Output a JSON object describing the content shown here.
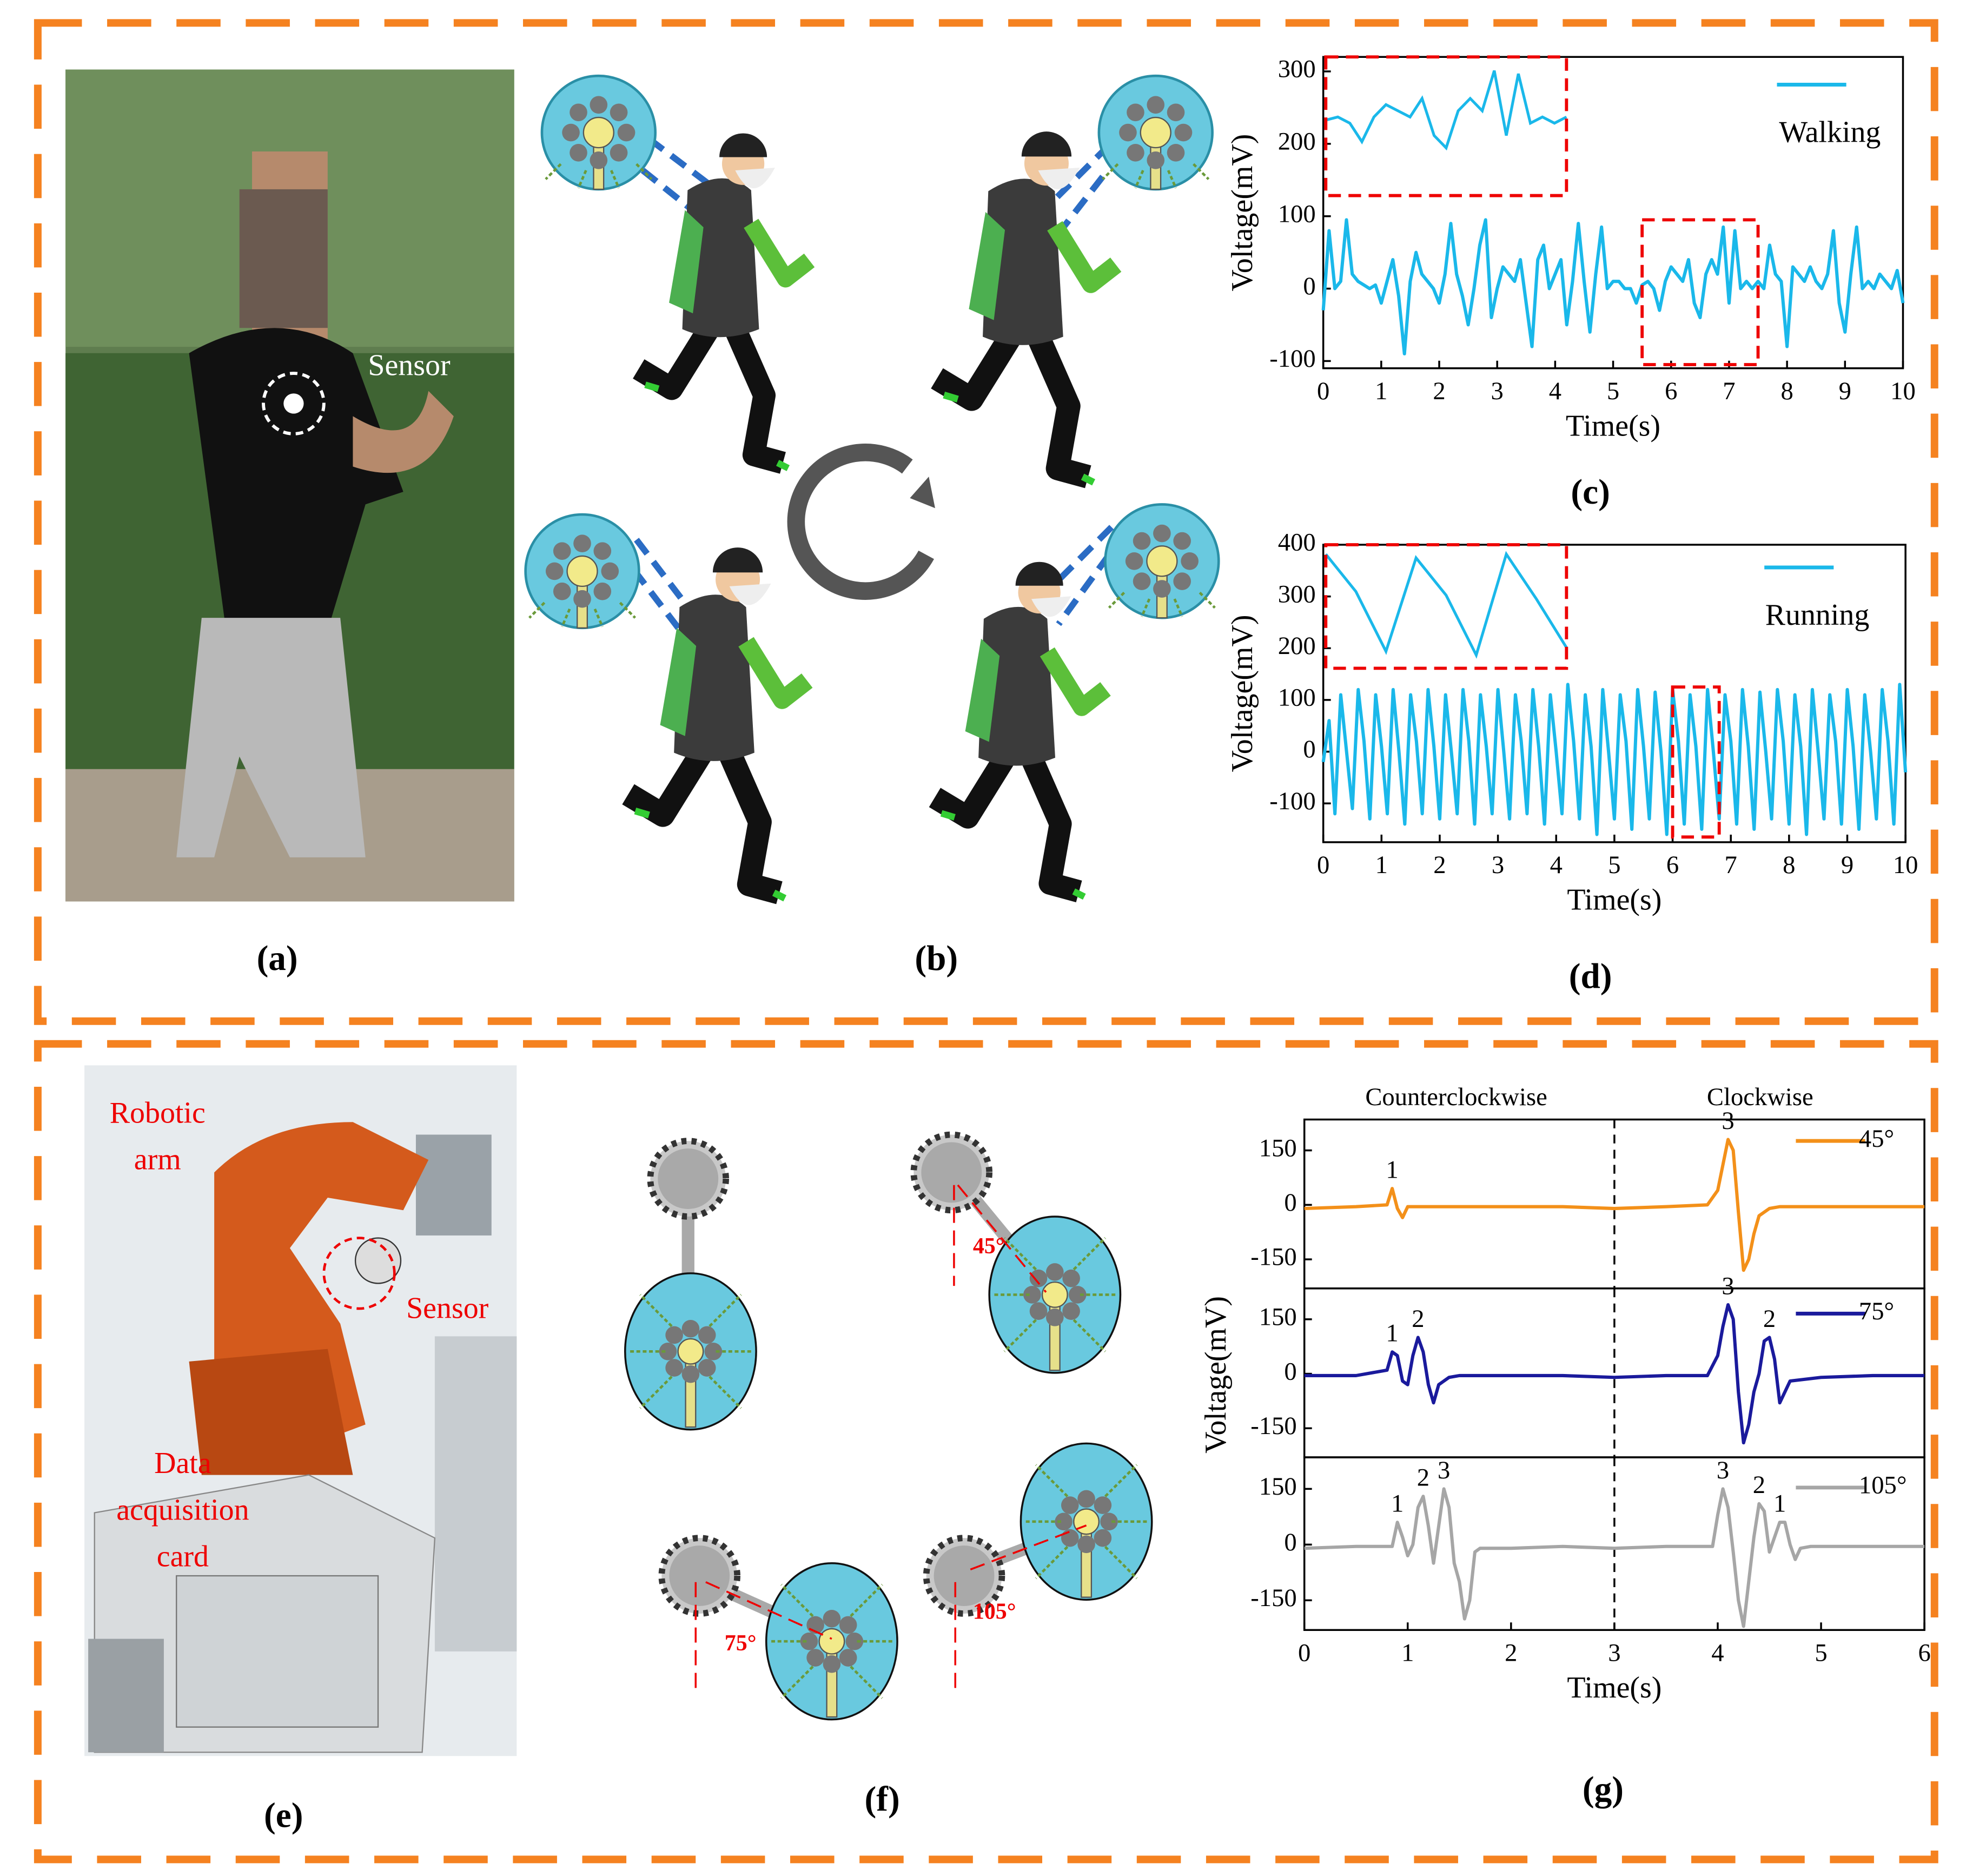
{
  "panel_labels": [
    "(a)",
    "(b)",
    "(c)",
    "(d)",
    "(e)",
    "(f)",
    "(g)"
  ],
  "photo_a": {
    "sensor_label": "Sensor"
  },
  "photo_e": {
    "robotic_arm": [
      "Robotic",
      "arm"
    ],
    "sensor_label": "Sensor",
    "daq_card": [
      "Data",
      "acquisition",
      "card"
    ]
  },
  "diagram_f": {
    "angles": [
      "45°",
      "75°",
      "105°"
    ]
  },
  "chart_data": [
    {
      "type": "line",
      "xlabel": "Time(s)",
      "ylabel": "Voltage(mV)",
      "x": [
        0,
        0.1,
        0.2,
        0.3,
        0.4,
        0.5,
        0.6,
        0.7,
        0.8,
        0.9,
        1,
        1.1,
        1.2,
        1.3,
        1.4,
        1.5,
        1.6,
        1.7,
        1.8,
        1.9,
        2,
        2.1,
        2.2,
        2.3,
        2.4,
        2.5,
        2.6,
        2.7,
        2.8,
        2.9,
        3,
        3.1,
        3.2,
        3.3,
        3.4,
        3.5,
        3.6,
        3.7,
        3.8,
        3.9,
        4,
        4.1,
        4.2,
        4.3,
        4.4,
        4.5,
        4.6,
        4.7,
        4.8,
        4.9,
        5,
        5.1,
        5.2,
        5.3,
        5.4,
        5.5,
        5.6,
        5.7,
        5.8,
        5.9,
        6,
        6.1,
        6.2,
        6.3,
        6.4,
        6.5,
        6.6,
        6.7,
        6.8,
        6.9,
        7,
        7.1,
        7.2,
        7.3,
        7.4,
        7.5,
        7.6,
        7.7,
        7.8,
        7.9,
        8,
        8.1,
        8.2,
        8.3,
        8.4,
        8.5,
        8.6,
        8.7,
        8.8,
        8.9,
        9,
        9.1,
        9.2,
        9.3,
        9.4,
        9.5,
        9.6,
        9.7,
        9.8,
        9.9,
        10
      ],
      "series": [
        {
          "name": "Walking",
          "color": "#1ab8ea",
          "values": [
            -30,
            80,
            0,
            10,
            95,
            20,
            10,
            5,
            0,
            5,
            -20,
            10,
            40,
            -10,
            -90,
            10,
            50,
            20,
            10,
            0,
            -20,
            20,
            90,
            20,
            -10,
            -50,
            0,
            60,
            95,
            -40,
            0,
            30,
            20,
            10,
            40,
            -20,
            -80,
            40,
            60,
            0,
            20,
            40,
            -50,
            10,
            90,
            10,
            -60,
            20,
            85,
            0,
            10,
            10,
            0,
            0,
            -20,
            5,
            10,
            0,
            -30,
            10,
            30,
            20,
            10,
            40,
            -20,
            -40,
            20,
            40,
            20,
            85,
            -20,
            80,
            0,
            10,
            0,
            10,
            0,
            60,
            20,
            10,
            -80,
            30,
            20,
            10,
            30,
            10,
            0,
            20,
            80,
            -20,
            -60,
            20,
            85,
            0,
            10,
            0,
            20,
            10,
            0,
            25,
            -20
          ]
        }
      ],
      "xlim": [
        0,
        10
      ],
      "ylim": [
        -110,
        320
      ],
      "xticks": [
        0,
        1,
        2,
        3,
        4,
        5,
        6,
        7,
        8,
        9,
        10
      ],
      "yticks": [
        -100,
        0,
        100,
        200,
        300
      ],
      "inset": {
        "xlim": [
          5.5,
          7.5
        ],
        "ylim": [
          -105,
          95
        ]
      }
    },
    {
      "type": "line",
      "xlabel": "Time(s)",
      "ylabel": "Voltage(mV)",
      "x": [
        0,
        0.1,
        0.2,
        0.3,
        0.4,
        0.5,
        0.6,
        0.7,
        0.8,
        0.9,
        1,
        1.1,
        1.2,
        1.3,
        1.4,
        1.5,
        1.6,
        1.7,
        1.8,
        1.9,
        2,
        2.1,
        2.2,
        2.3,
        2.4,
        2.5,
        2.6,
        2.7,
        2.8,
        2.9,
        3,
        3.1,
        3.2,
        3.3,
        3.4,
        3.5,
        3.6,
        3.7,
        3.8,
        3.9,
        4,
        4.1,
        4.2,
        4.3,
        4.4,
        4.5,
        4.6,
        4.7,
        4.8,
        4.9,
        5,
        5.1,
        5.2,
        5.3,
        5.4,
        5.5,
        5.6,
        5.7,
        5.8,
        5.9,
        6,
        6.1,
        6.2,
        6.3,
        6.4,
        6.5,
        6.6,
        6.7,
        6.8,
        6.9,
        7,
        7.1,
        7.2,
        7.3,
        7.4,
        7.5,
        7.6,
        7.7,
        7.8,
        7.9,
        8,
        8.1,
        8.2,
        8.3,
        8.4,
        8.5,
        8.6,
        8.7,
        8.8,
        8.9,
        9,
        9.1,
        9.2,
        9.3,
        9.4,
        9.5,
        9.6,
        9.7,
        9.8,
        9.9,
        10
      ],
      "series": [
        {
          "name": "Running",
          "color": "#1ab8ea",
          "values": [
            -20,
            60,
            -120,
            110,
            0,
            -110,
            120,
            20,
            -130,
            110,
            10,
            -120,
            120,
            0,
            -140,
            110,
            20,
            -120,
            120,
            10,
            -130,
            110,
            0,
            -120,
            120,
            20,
            -140,
            110,
            10,
            -120,
            120,
            0,
            -130,
            110,
            20,
            -120,
            120,
            10,
            -140,
            110,
            0,
            -120,
            130,
            20,
            -130,
            110,
            10,
            -160,
            120,
            0,
            -130,
            110,
            20,
            -150,
            120,
            10,
            -130,
            115,
            0,
            -160,
            120,
            20,
            -140,
            110,
            10,
            -150,
            120,
            0,
            -130,
            110,
            20,
            -140,
            120,
            10,
            -150,
            115,
            0,
            -130,
            120,
            20,
            -140,
            110,
            10,
            -160,
            120,
            0,
            -130,
            110,
            20,
            -140,
            120,
            10,
            -150,
            110,
            0,
            -130,
            120,
            20,
            -140,
            130,
            -40
          ]
        }
      ],
      "xlim": [
        0,
        10
      ],
      "ylim": [
        -175,
        400
      ],
      "xticks": [
        0,
        1,
        2,
        3,
        4,
        5,
        6,
        7,
        8,
        9,
        10
      ],
      "yticks": [
        -100,
        0,
        100,
        200,
        300,
        400
      ],
      "inset": {
        "xlim": [
          6.0,
          6.8
        ],
        "ylim": [
          -165,
          125
        ]
      }
    },
    {
      "type": "line",
      "annotations": [
        "Counterclockwise",
        "Clockwise"
      ],
      "divider_x": 3,
      "x": [
        0,
        0.5,
        0.8,
        0.85,
        0.9,
        0.95,
        1.0,
        1.5,
        2,
        2.5,
        3,
        3.5,
        3.9,
        4.0,
        4.1,
        4.15,
        4.2,
        4.25,
        4.3,
        4.35,
        4.4,
        4.5,
        4.6,
        5,
        5.5,
        6
      ],
      "series": [
        {
          "name": "45°",
          "color": "#f39019",
          "values": [
            -10,
            -5,
            0,
            45,
            -10,
            -35,
            -5,
            -5,
            -5,
            -5,
            -10,
            -5,
            0,
            40,
            180,
            150,
            -20,
            -180,
            -150,
            -80,
            -30,
            -10,
            -5,
            -5,
            -5,
            -5
          ],
          "point_labels": [
            null,
            null,
            null,
            "1",
            null,
            null,
            null,
            null,
            null,
            null,
            null,
            null,
            null,
            null,
            "3",
            null,
            null,
            null,
            null,
            null,
            null,
            null,
            null,
            null,
            null,
            null
          ]
        }
      ],
      "xlim": [
        0,
        6
      ],
      "ylim": [
        -230,
        235
      ],
      "yticks": [
        -150,
        0,
        150
      ]
    },
    {
      "type": "line",
      "ylabel": "Voltage(mV)",
      "divider_x": 3,
      "x": [
        0,
        0.5,
        0.8,
        0.85,
        0.9,
        0.95,
        1.0,
        1.05,
        1.1,
        1.15,
        1.2,
        1.25,
        1.3,
        1.4,
        1.5,
        2,
        2.5,
        3,
        3.5,
        3.9,
        4.0,
        4.05,
        4.1,
        4.15,
        4.2,
        4.25,
        4.3,
        4.35,
        4.4,
        4.45,
        4.5,
        4.55,
        4.6,
        4.7,
        5,
        5.5,
        6
      ],
      "series": [
        {
          "name": "75°",
          "color": "#1a1a9c",
          "values": [
            -5,
            -5,
            10,
            60,
            50,
            -20,
            -30,
            50,
            100,
            60,
            -30,
            -80,
            -30,
            -10,
            -5,
            -5,
            -5,
            -10,
            -5,
            -5,
            50,
            130,
            190,
            150,
            -50,
            -190,
            -140,
            -50,
            0,
            90,
            100,
            40,
            -80,
            -20,
            -10,
            -5,
            -5
          ],
          "point_labels": [
            null,
            null,
            null,
            "1",
            null,
            null,
            null,
            null,
            "2",
            null,
            null,
            null,
            null,
            null,
            null,
            null,
            null,
            null,
            null,
            null,
            null,
            null,
            "3",
            null,
            null,
            null,
            null,
            null,
            null,
            null,
            "2",
            null,
            null,
            null,
            null,
            null,
            null
          ]
        }
      ],
      "xlim": [
        0,
        6
      ],
      "ylim": [
        -230,
        235
      ],
      "yticks": [
        -150,
        0,
        150
      ]
    },
    {
      "type": "line",
      "xlabel": "Time(s)",
      "divider_x": 3,
      "x": [
        0,
        0.5,
        0.85,
        0.9,
        0.95,
        1.0,
        1.05,
        1.1,
        1.15,
        1.2,
        1.25,
        1.3,
        1.35,
        1.4,
        1.45,
        1.5,
        1.55,
        1.6,
        1.65,
        1.7,
        2,
        2.5,
        3,
        3.5,
        3.95,
        4.0,
        4.05,
        4.1,
        4.15,
        4.2,
        4.25,
        4.3,
        4.35,
        4.4,
        4.45,
        4.5,
        4.55,
        4.6,
        4.65,
        4.7,
        4.75,
        4.8,
        4.9,
        5,
        5.5,
        6
      ],
      "series": [
        {
          "name": "105°",
          "color": "#a6a6a6",
          "values": [
            -10,
            -5,
            -5,
            60,
            20,
            -30,
            0,
            100,
            130,
            50,
            -50,
            50,
            150,
            100,
            -50,
            -100,
            -200,
            -150,
            -20,
            -10,
            -10,
            -5,
            -10,
            -5,
            -5,
            80,
            150,
            100,
            -20,
            -150,
            -220,
            -100,
            20,
            110,
            90,
            -20,
            20,
            60,
            60,
            0,
            -40,
            -10,
            -5,
            -5,
            -5,
            -5
          ],
          "point_labels": [
            null,
            null,
            null,
            "1",
            null,
            null,
            null,
            null,
            "2",
            null,
            null,
            null,
            "3",
            null,
            null,
            null,
            null,
            null,
            null,
            null,
            null,
            null,
            null,
            null,
            null,
            null,
            "3",
            null,
            null,
            null,
            null,
            null,
            null,
            "2",
            null,
            null,
            null,
            "1",
            null,
            null,
            null,
            null,
            null,
            null,
            null,
            null
          ]
        }
      ],
      "xlim": [
        0,
        6
      ],
      "ylim": [
        -230,
        235
      ],
      "xticks": [
        0,
        1,
        2,
        3,
        4,
        5,
        6
      ],
      "yticks": [
        -150,
        0,
        150
      ]
    }
  ]
}
